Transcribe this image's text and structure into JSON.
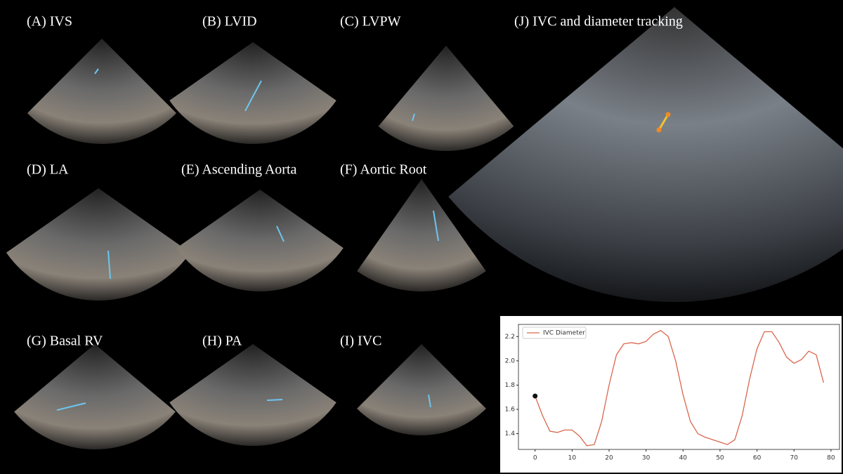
{
  "panels": [
    "(A) IVS",
    "(B) LVID",
    "(C) LVPW",
    "(J) IVC and diameter tracking",
    "(D) LA",
    "(E) Ascending Aorta",
    "(F) Aortic Root",
    "(G) Basal RV",
    "(H) PA",
    "(I) IVC"
  ],
  "chart_data": {
    "type": "line",
    "x": [
      0,
      2,
      4,
      6,
      8,
      10,
      12,
      14,
      16,
      18,
      20,
      22,
      24,
      26,
      28,
      30,
      32,
      34,
      36,
      38,
      40,
      42,
      44,
      46,
      48,
      50,
      52,
      54,
      56,
      58,
      60,
      62,
      64,
      66,
      68,
      70,
      72,
      74,
      76,
      78
    ],
    "series": [
      {
        "name": "IVC Diameter",
        "color": "#d9674e",
        "values": [
          1.71,
          1.55,
          1.42,
          1.41,
          1.43,
          1.43,
          1.38,
          1.3,
          1.31,
          1.5,
          1.8,
          2.05,
          2.14,
          2.15,
          2.14,
          2.16,
          2.22,
          2.25,
          2.2,
          2.0,
          1.72,
          1.5,
          1.4,
          1.37,
          1.35,
          1.33,
          1.31,
          1.35,
          1.55,
          1.85,
          2.1,
          2.24,
          2.24,
          2.15,
          2.03,
          1.98,
          2.01,
          2.08,
          2.05,
          1.82
        ]
      }
    ],
    "xlim": [
      -4.5,
      82.3
    ],
    "xticks": [
      0,
      10,
      20,
      30,
      40,
      50,
      60,
      70,
      80
    ],
    "ylim": [
      1.27,
      2.3
    ],
    "yticks": [
      1.4,
      1.6,
      1.8,
      {
        "value": 2,
        "label": "2.0"
      },
      2.2
    ],
    "legend": "upper left"
  }
}
